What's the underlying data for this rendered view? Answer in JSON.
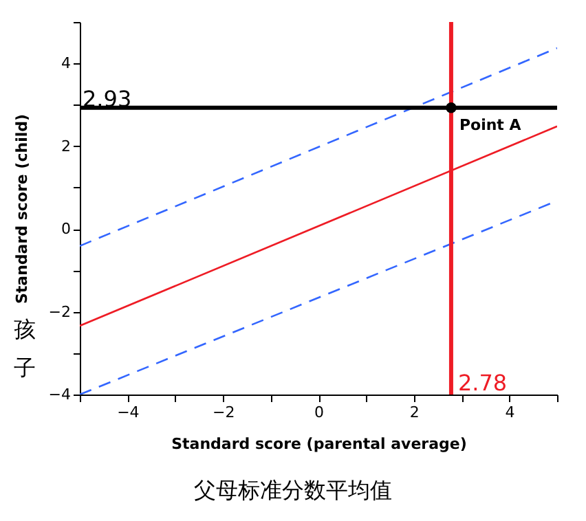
{
  "chart_data": {
    "type": "line",
    "xlabel": "Standard score (parental average)",
    "ylabel": "Standard score (child)",
    "annotations": [
      "父母标准分数平均值",
      "孩子"
    ],
    "xlim": [
      -5,
      5
    ],
    "xticks": [
      {
        "value": -5,
        "label": null
      },
      -4,
      {
        "value": -3,
        "label": null
      },
      -2,
      {
        "value": -1,
        "label": null
      },
      0,
      {
        "value": 1,
        "label": null
      },
      2,
      {
        "value": 3,
        "label": null
      },
      4,
      {
        "value": 5,
        "label": null
      }
    ],
    "ylim": [
      -4,
      5
    ],
    "yticks": [
      -4,
      {
        "value": -3,
        "label": null
      },
      -2,
      {
        "value": -1,
        "label": null
      },
      0,
      {
        "value": 1,
        "label": null
      },
      2,
      {
        "value": 3,
        "label": null
      },
      4,
      {
        "value": 5,
        "label": null
      }
    ],
    "series": [
      {
        "color": "#ee1c25",
        "line_style": "solid",
        "x": [
          -5,
          5
        ],
        "values": [
          -2.34,
          2.48
        ]
      },
      {
        "color": "#3366ff",
        "line_style": "dashed",
        "x": [
          -5,
          5
        ],
        "values": [
          -0.41,
          4.37
        ]
      },
      {
        "color": "#3366ff",
        "line_style": "dashed",
        "x": [
          -5,
          5
        ],
        "values": [
          -4.0,
          0.68
        ]
      },
      {
        "type": "scatter",
        "name": "Point A",
        "color": "#000000",
        "marker": "circle",
        "x": [
          2.78
        ],
        "values": [
          2.93
        ]
      }
    ],
    "ref_lines": [
      {
        "axis": "y",
        "value": 2.93,
        "label": "2.93",
        "color": "#000000"
      },
      {
        "axis": "x",
        "value": 2.78,
        "label": "2.78",
        "color": "#ee1c25"
      }
    ],
    "grid": false
  }
}
